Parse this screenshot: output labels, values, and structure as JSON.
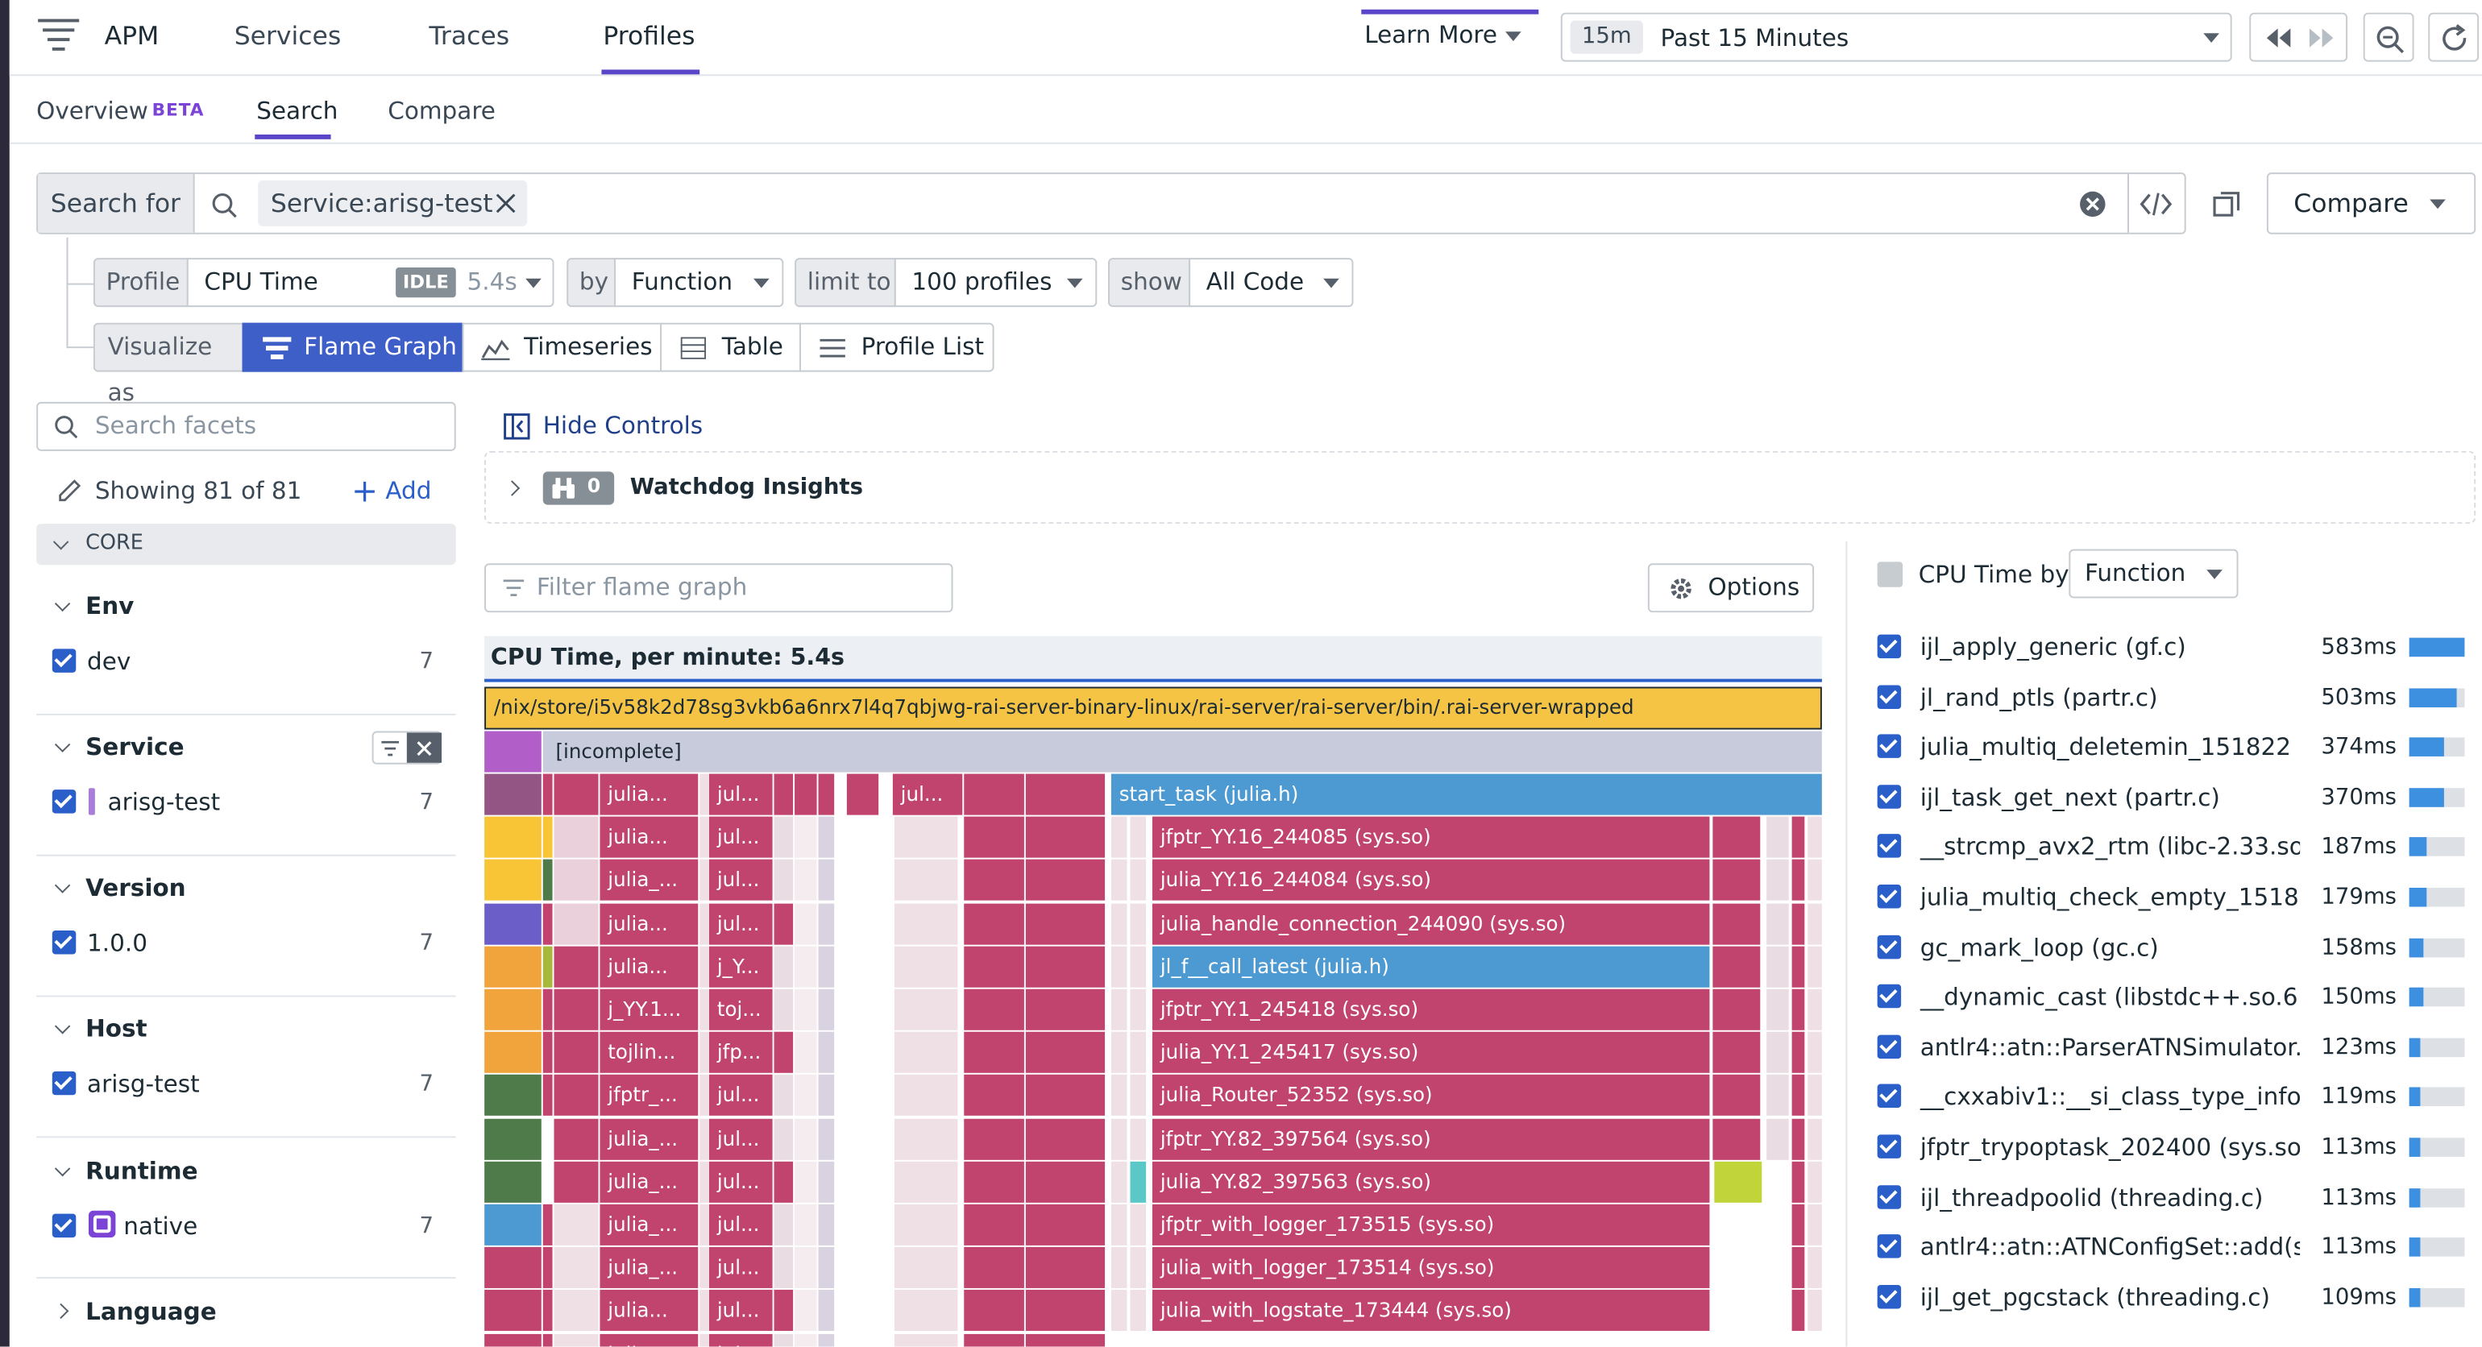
{
  "nav": {
    "app": "APM",
    "items": [
      "Services",
      "Traces",
      "Profiles"
    ],
    "learn_more": "Learn More",
    "time_chip": "15m",
    "time_label": "Past 15 Minutes"
  },
  "subnav": {
    "overview": "Overview",
    "beta": "BETA",
    "search": "Search",
    "compare": "Compare"
  },
  "search": {
    "label": "Search for",
    "pill": "Service:arisg-test",
    "compare_button": "Compare"
  },
  "query": {
    "profile_label": "Profile",
    "profile_value": "CPU Time",
    "idle_badge": "IDLE",
    "idle_value": "5.4s",
    "by_label": "by",
    "by_value": "Function",
    "limit_label": "limit to",
    "limit_value": "100 profiles",
    "show_label": "show",
    "show_value": "All Code",
    "viz_label": "Visualize as",
    "viz_options": [
      "Flame Graph",
      "Timeseries",
      "Table",
      "Profile List"
    ]
  },
  "facets": {
    "search_placeholder": "Search facets",
    "showing": "Showing 81 of 81",
    "add": "Add",
    "core": "CORE",
    "groups": [
      {
        "name": "Env",
        "value": "dev",
        "count": "7"
      },
      {
        "name": "Service",
        "value": "arisg-test",
        "count": "7"
      },
      {
        "name": "Version",
        "value": "1.0.0",
        "count": "7"
      },
      {
        "name": "Host",
        "value": "arisg-test",
        "count": "7"
      },
      {
        "name": "Runtime",
        "value": "native",
        "count": "7"
      }
    ],
    "language": "Language"
  },
  "main": {
    "hide_controls": "Hide Controls",
    "watchdog_count": "0",
    "watchdog_label": "Watchdog Insights",
    "filter_placeholder": "Filter flame graph",
    "options": "Options",
    "cpu_heading": "CPU Time, per minute: 5.4s"
  },
  "flame": {
    "root": "/nix/store/i5v58k2d78sg3vkb6a6nrx7l4q7qbjwg-rai-server-binary-linux/rai-server/rai-server/bin/.rai-server-wrapped",
    "incomplete": "[incomplete]",
    "start_task": "start_task (julia.h)",
    "main_rows": [
      "jfptr_YY.16_244085 (sys.so)",
      "julia_YY.16_244084 (sys.so)",
      "julia_handle_connection_244090 (sys.so)",
      "jl_f__call_latest (julia.h)",
      "jfptr_YY.1_245418 (sys.so)",
      "julia_YY.1_245417 (sys.so)",
      "julia_Router_52352 (sys.so)",
      "jfptr_YY.82_397564 (sys.so)",
      "julia_YY.82_397563 (sys.so)",
      "jfptr_with_logger_173515 (sys.so)",
      "julia_with_logger_173514 (sys.so)",
      "julia_with_logstate_173444 (sys.so)"
    ],
    "col_a": [
      "julia...",
      "julia...",
      "julia_...",
      "julia...",
      "julia...",
      "j_YY.1...",
      "tojlin...",
      "jfptr_...",
      "julia_...",
      "julia_...",
      "julia_...",
      "julia_...",
      "julia..."
    ],
    "col_b": [
      "jul...",
      "jul...",
      "jul...",
      "jul...",
      "j_Y...",
      "toj...",
      "jfp...",
      "jul...",
      "jul...",
      "jul...",
      "jul...",
      "jul...",
      "jul..."
    ],
    "col_c": "jul..."
  },
  "right": {
    "title": "CPU Time by",
    "select": "Function",
    "rows": [
      {
        "name": "ijl_apply_generic (gf.c)",
        "value": "583ms",
        "pct": 1.0
      },
      {
        "name": "jl_rand_ptls (partr.c)",
        "value": "503ms",
        "pct": 0.86
      },
      {
        "name": "julia_multiq_deletemin_151822 (...",
        "value": "374ms",
        "pct": 0.64
      },
      {
        "name": "ijl_task_get_next (partr.c)",
        "value": "370ms",
        "pct": 0.63
      },
      {
        "name": "__strcmp_avx2_rtm (libc-2.33.so)",
        "value": "187ms",
        "pct": 0.32
      },
      {
        "name": "julia_multiq_check_empty_1518...",
        "value": "179ms",
        "pct": 0.31
      },
      {
        "name": "gc_mark_loop (gc.c)",
        "value": "158ms",
        "pct": 0.27
      },
      {
        "name": "__dynamic_cast (libstdc++.so.6.0...",
        "value": "150ms",
        "pct": 0.26
      },
      {
        "name": "antlr4::atn::ParserATNSimulator...",
        "value": "123ms",
        "pct": 0.21
      },
      {
        "name": "__cxxabiv1::__si_class_type_info::...",
        "value": "119ms",
        "pct": 0.2
      },
      {
        "name": "jfptr_trypoptask_202400 (sys.so)",
        "value": "113ms",
        "pct": 0.19
      },
      {
        "name": "ijl_threadpoolid (threading.c)",
        "value": "113ms",
        "pct": 0.19
      },
      {
        "name": "antlr4::atn::ATNConfigSet::add(s...",
        "value": "113ms",
        "pct": 0.19
      },
      {
        "name": "ijl_get_pgcstack (threading.c)",
        "value": "109ms",
        "pct": 0.19
      }
    ]
  },
  "colors": {
    "accent": "#5a44c8",
    "primary_blue": "#3e5ec8",
    "flame_pink": "#c1446f",
    "flame_blue": "#4d9ad2",
    "flame_root": "#f5c444",
    "flame_grey": "#c8cbdc"
  }
}
